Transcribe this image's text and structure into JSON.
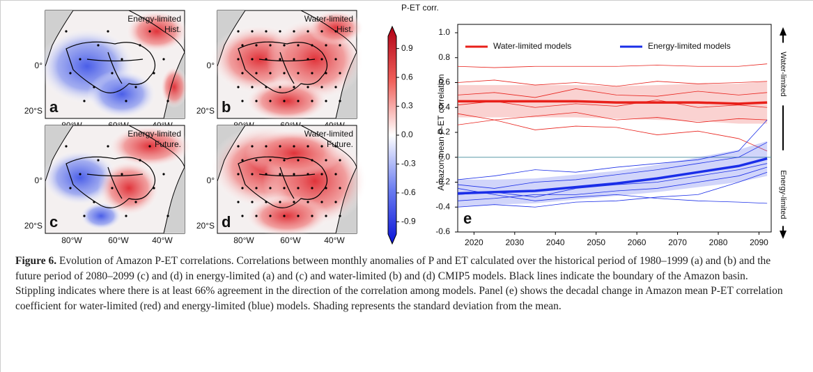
{
  "maps": [
    {
      "letter": "a",
      "label": [
        "Energy-limited",
        "Hist."
      ]
    },
    {
      "letter": "b",
      "label": [
        "Water-limited",
        "Hist."
      ]
    },
    {
      "letter": "c",
      "label": [
        "Energy-limited",
        "Future."
      ]
    },
    {
      "letter": "d",
      "label": [
        "Water-limited",
        "Future."
      ]
    }
  ],
  "map_axes": {
    "lat": [
      "0°",
      "20°S"
    ],
    "lon": [
      "80°W",
      "60°W",
      "40°W"
    ]
  },
  "colorbar": {
    "title": "P-ET corr.",
    "lim": [
      -1.1,
      1.1
    ],
    "ticks": [
      0.9,
      0.6,
      0.3,
      {
        "value": 0,
        "label": "0.0"
      },
      -0.3,
      -0.6,
      -0.9
    ]
  },
  "chart_data": {
    "type": "line",
    "panel": "e",
    "ylabel": "Amazon mean P-ET correlation",
    "x": [
      2016,
      2025,
      2035,
      2045,
      2055,
      2065,
      2075,
      2085,
      2092
    ],
    "xlim": [
      2016,
      2093
    ],
    "xticks": [
      2020,
      2030,
      2040,
      2050,
      2060,
      2070,
      2080,
      2090
    ],
    "ylim": [
      -0.6,
      1.0
    ],
    "yticks": [
      -0.6,
      -0.4,
      -0.2,
      {
        "value": 0,
        "label": "0.0"
      },
      0.2,
      0.4,
      0.6,
      0.8,
      {
        "value": 1,
        "label": "1.0"
      }
    ],
    "reference_line": 0,
    "annotations": [
      "Water-limited",
      "Energy-limited"
    ],
    "legend": "upper left",
    "series": [
      {
        "name": "Water-limited models",
        "color": "#e8201a",
        "values": [
          0.45,
          0.45,
          0.45,
          0.45,
          0.44,
          0.44,
          0.44,
          0.43,
          0.44
        ],
        "std": [
          0.13,
          0.13,
          0.13,
          0.13,
          0.13,
          0.14,
          0.15,
          0.16,
          0.17
        ],
        "models": [
          [
            0.73,
            0.72,
            0.73,
            0.73,
            0.73,
            0.74,
            0.73,
            0.73,
            0.75
          ],
          [
            0.6,
            0.62,
            0.58,
            0.6,
            0.57,
            0.61,
            0.59,
            0.6,
            0.61
          ],
          [
            0.5,
            0.52,
            0.48,
            0.55,
            0.5,
            0.49,
            0.53,
            0.5,
            0.52
          ],
          [
            0.42,
            0.45,
            0.4,
            0.43,
            0.41,
            0.46,
            0.4,
            0.42,
            0.4
          ],
          [
            0.35,
            0.3,
            0.33,
            0.36,
            0.3,
            0.32,
            0.28,
            0.31,
            0.3
          ],
          [
            0.26,
            0.3,
            0.22,
            0.25,
            0.24,
            0.18,
            0.21,
            0.15,
            0.05
          ]
        ]
      },
      {
        "name": "Energy-limited models",
        "color": "#1a2ee8",
        "values": [
          -0.29,
          -0.28,
          -0.27,
          -0.24,
          -0.21,
          -0.17,
          -0.12,
          -0.07,
          -0.01
        ],
        "std": [
          0.11,
          0.1,
          0.1,
          0.1,
          0.1,
          0.11,
          0.12,
          0.13,
          0.14
        ],
        "models": [
          [
            -0.18,
            -0.15,
            -0.1,
            -0.12,
            -0.08,
            -0.05,
            -0.02,
            0.05,
            0.3
          ],
          [
            -0.22,
            -0.25,
            -0.2,
            -0.18,
            -0.14,
            -0.1,
            -0.05,
            0.0,
            0.12
          ],
          [
            -0.3,
            -0.28,
            -0.32,
            -0.25,
            -0.22,
            -0.2,
            -0.15,
            -0.1,
            -0.05
          ],
          [
            -0.35,
            -0.33,
            -0.3,
            -0.3,
            -0.27,
            -0.25,
            -0.2,
            -0.15,
            -0.08
          ],
          [
            -0.4,
            -0.38,
            -0.4,
            -0.36,
            -0.35,
            -0.32,
            -0.3,
            -0.2,
            -0.12
          ],
          [
            -0.25,
            -0.3,
            -0.35,
            -0.32,
            -0.3,
            -0.33,
            -0.35,
            -0.36,
            -0.37
          ]
        ]
      }
    ]
  },
  "caption": {
    "label": "Figure 6.",
    "text": "Evolution of Amazon P-ET correlations. Correlations between monthly anomalies of P and ET calculated over the historical period of 1980–1999 (a) and (b) and the future period of 2080–2099 (c) and (d) in energy-limited (a) and (c) and water-limited (b) and (d) CMIP5 models. Black lines indicate the boundary of the Amazon basin. Stippling indicates where there is at least 66% agreement in the direction of the correlation among models. Panel (e) shows the decadal change in Amazon mean P-ET correlation coefficient for water-limited (red) and energy-limited (blue) models. Shading represents the standard deviation from the mean."
  }
}
